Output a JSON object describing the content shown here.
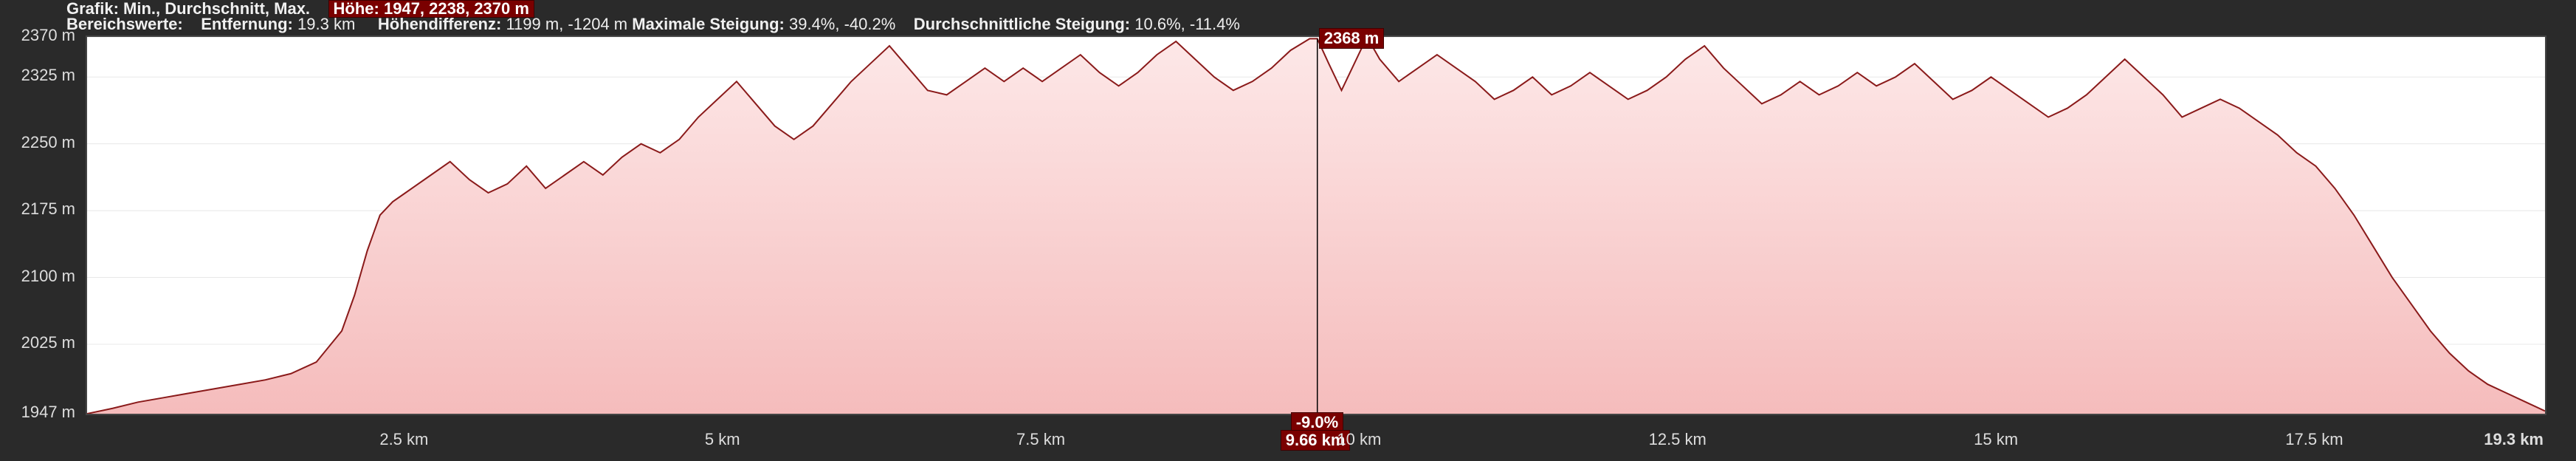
{
  "header": {
    "grafik_label": "Grafik: Min., Durchschnitt, Max.",
    "hoehe_label": "Höhe:",
    "hoehe_value": "1947, 2238, 2370 m",
    "bereich_label": "Bereichswerte:",
    "entfernung_label": "Entfernung:",
    "entfernung_value": "19.3 km",
    "hoehendiff_label": "Höhendifferenz:",
    "hoehendiff_value": "1199 m, -1204 m",
    "maxsteig_label": "Maximale Steigung:",
    "maxsteig_value": "39.4%, -40.2%",
    "avgsteig_label": "Durchschnittliche Steigung:",
    "avgsteig_value": "10.6%, -11.4%"
  },
  "chart": {
    "type": "area",
    "x_min_km": 0,
    "x_max_km": 19.3,
    "y_min_m": 1947,
    "y_max_m": 2370,
    "y_ticks": [
      1947,
      2025,
      2100,
      2175,
      2250,
      2325,
      2370
    ],
    "y_tick_labels": [
      "1947 m",
      "2025 m",
      "2100 m",
      "2175 m",
      "2250 m",
      "2325 m",
      "2370 m"
    ],
    "x_ticks": [
      2.5,
      5,
      7.5,
      10,
      12.5,
      15,
      17.5
    ],
    "x_tick_labels": [
      "2.5 km",
      "5 km",
      "7.5 km",
      "10 km",
      "12.5 km",
      "15 km",
      "17.5 km"
    ],
    "x_end_label": "19.3 km",
    "background_color": "#ffffff",
    "frame_color": "#444444",
    "grid_color": "#e8e8e8",
    "line_color": "#8a1a1a",
    "line_width": 2,
    "fill_top_color": "#fde8e8",
    "fill_bottom_color": "#f5bcbc",
    "outer_bg": "#2a2a2a",
    "label_color": "#dddddd",
    "label_fontsize": 22,
    "cursor": {
      "x_km": 9.66,
      "y_m": 2368,
      "tooltip_top": "2368 m",
      "tooltip_gradient": "-9.0%",
      "tooltip_x": "9.66 km",
      "line_color": "#000000",
      "badge_bg": "#7a0000",
      "badge_border": "#400000",
      "badge_text": "#ffffff"
    },
    "profile": [
      [
        0.0,
        1947
      ],
      [
        0.2,
        1953
      ],
      [
        0.4,
        1960
      ],
      [
        0.6,
        1965
      ],
      [
        0.8,
        1970
      ],
      [
        1.0,
        1975
      ],
      [
        1.2,
        1980
      ],
      [
        1.4,
        1985
      ],
      [
        1.6,
        1992
      ],
      [
        1.8,
        2005
      ],
      [
        2.0,
        2040
      ],
      [
        2.1,
        2080
      ],
      [
        2.2,
        2130
      ],
      [
        2.3,
        2170
      ],
      [
        2.4,
        2185
      ],
      [
        2.5,
        2195
      ],
      [
        2.7,
        2215
      ],
      [
        2.85,
        2230
      ],
      [
        3.0,
        2210
      ],
      [
        3.15,
        2195
      ],
      [
        3.3,
        2205
      ],
      [
        3.45,
        2225
      ],
      [
        3.6,
        2200
      ],
      [
        3.75,
        2215
      ],
      [
        3.9,
        2230
      ],
      [
        4.05,
        2215
      ],
      [
        4.2,
        2235
      ],
      [
        4.35,
        2250
      ],
      [
        4.5,
        2240
      ],
      [
        4.65,
        2255
      ],
      [
        4.8,
        2280
      ],
      [
        4.95,
        2300
      ],
      [
        5.1,
        2320
      ],
      [
        5.25,
        2295
      ],
      [
        5.4,
        2270
      ],
      [
        5.55,
        2255
      ],
      [
        5.7,
        2270
      ],
      [
        5.85,
        2295
      ],
      [
        6.0,
        2320
      ],
      [
        6.15,
        2340
      ],
      [
        6.3,
        2360
      ],
      [
        6.45,
        2335
      ],
      [
        6.6,
        2310
      ],
      [
        6.75,
        2305
      ],
      [
        6.9,
        2320
      ],
      [
        7.05,
        2335
      ],
      [
        7.2,
        2320
      ],
      [
        7.35,
        2335
      ],
      [
        7.5,
        2320
      ],
      [
        7.65,
        2335
      ],
      [
        7.8,
        2350
      ],
      [
        7.95,
        2330
      ],
      [
        8.1,
        2315
      ],
      [
        8.25,
        2330
      ],
      [
        8.4,
        2350
      ],
      [
        8.55,
        2365
      ],
      [
        8.7,
        2345
      ],
      [
        8.85,
        2325
      ],
      [
        9.0,
        2310
      ],
      [
        9.15,
        2320
      ],
      [
        9.3,
        2335
      ],
      [
        9.45,
        2355
      ],
      [
        9.6,
        2368
      ],
      [
        9.66,
        2368
      ],
      [
        9.75,
        2340
      ],
      [
        9.85,
        2310
      ],
      [
        9.95,
        2340
      ],
      [
        10.05,
        2370
      ],
      [
        10.15,
        2345
      ],
      [
        10.3,
        2320
      ],
      [
        10.45,
        2335
      ],
      [
        10.6,
        2350
      ],
      [
        10.75,
        2335
      ],
      [
        10.9,
        2320
      ],
      [
        11.05,
        2300
      ],
      [
        11.2,
        2310
      ],
      [
        11.35,
        2325
      ],
      [
        11.5,
        2305
      ],
      [
        11.65,
        2315
      ],
      [
        11.8,
        2330
      ],
      [
        11.95,
        2315
      ],
      [
        12.1,
        2300
      ],
      [
        12.25,
        2310
      ],
      [
        12.4,
        2325
      ],
      [
        12.55,
        2345
      ],
      [
        12.7,
        2360
      ],
      [
        12.85,
        2335
      ],
      [
        13.0,
        2315
      ],
      [
        13.15,
        2295
      ],
      [
        13.3,
        2305
      ],
      [
        13.45,
        2320
      ],
      [
        13.6,
        2305
      ],
      [
        13.75,
        2315
      ],
      [
        13.9,
        2330
      ],
      [
        14.05,
        2315
      ],
      [
        14.2,
        2325
      ],
      [
        14.35,
        2340
      ],
      [
        14.5,
        2320
      ],
      [
        14.65,
        2300
      ],
      [
        14.8,
        2310
      ],
      [
        14.95,
        2325
      ],
      [
        15.1,
        2310
      ],
      [
        15.25,
        2295
      ],
      [
        15.4,
        2280
      ],
      [
        15.55,
        2290
      ],
      [
        15.7,
        2305
      ],
      [
        15.85,
        2325
      ],
      [
        16.0,
        2345
      ],
      [
        16.15,
        2325
      ],
      [
        16.3,
        2305
      ],
      [
        16.45,
        2280
      ],
      [
        16.6,
        2290
      ],
      [
        16.75,
        2300
      ],
      [
        16.9,
        2290
      ],
      [
        17.05,
        2275
      ],
      [
        17.2,
        2260
      ],
      [
        17.35,
        2240
      ],
      [
        17.5,
        2225
      ],
      [
        17.65,
        2200
      ],
      [
        17.8,
        2170
      ],
      [
        17.95,
        2135
      ],
      [
        18.1,
        2100
      ],
      [
        18.25,
        2070
      ],
      [
        18.4,
        2040
      ],
      [
        18.55,
        2015
      ],
      [
        18.7,
        1995
      ],
      [
        18.85,
        1980
      ],
      [
        19.0,
        1970
      ],
      [
        19.15,
        1960
      ],
      [
        19.3,
        1950
      ]
    ]
  }
}
